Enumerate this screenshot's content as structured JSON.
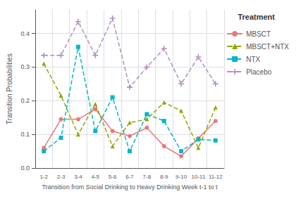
{
  "chart_data": {
    "type": "line",
    "xlabel": "Transition from Social Drinking to Heavy Drinking Week t-1 to t",
    "ylabel": "Transition Probabilities",
    "legend_title": "Treatment",
    "categories": [
      "1-2",
      "2-3",
      "3-4",
      "4-5",
      "5-6",
      "6-7",
      "7-8",
      "8-9",
      "9-10",
      "10-11",
      "11-12"
    ],
    "series": [
      {
        "name": "MBSCT",
        "color": "#e87878",
        "marker": "circle",
        "line_style": "solid",
        "values": [
          0.06,
          0.145,
          0.145,
          0.175,
          0.11,
          0.095,
          0.12,
          0.065,
          0.035,
          0.088,
          0.14
        ]
      },
      {
        "name": "MBSCT+NTX",
        "color": "#8fa800",
        "marker": "triangle",
        "line_style": "dashed",
        "values": [
          0.31,
          0.215,
          0.1,
          0.19,
          0.065,
          0.135,
          0.145,
          0.195,
          0.17,
          0.06,
          0.18
        ]
      },
      {
        "name": "NTX",
        "color": "#00b8c8",
        "marker": "square",
        "line_style": "dashed",
        "values": [
          0.05,
          0.09,
          0.36,
          0.11,
          0.21,
          0.05,
          0.16,
          0.14,
          0.05,
          0.085,
          0.082
        ]
      },
      {
        "name": "Placebo",
        "color": "#b090c0",
        "marker": "plus",
        "line_style": "dashed",
        "values": [
          0.335,
          0.335,
          0.435,
          0.335,
          0.445,
          0.24,
          0.3,
          0.355,
          0.25,
          0.33,
          0.25
        ]
      }
    ],
    "ylim": [
      0.0,
      0.47
    ],
    "yticks": [
      {
        "value": 0.0,
        "label": "0.0"
      },
      0.1,
      0.2,
      0.3,
      0.4
    ],
    "grid": true,
    "legend": "right"
  }
}
